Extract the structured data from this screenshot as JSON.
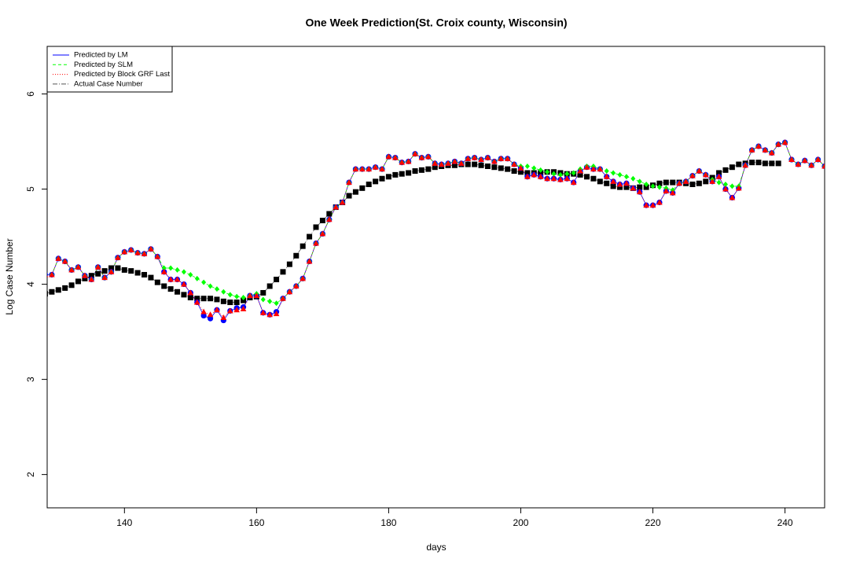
{
  "chart_data": {
    "type": "scatter",
    "title": "One Week Prediction(St. Croix county, Wisconsin)",
    "x_label": "days",
    "y_label": "Log Case Number",
    "xlim": [
      128.3,
      246
    ],
    "ylim": [
      1.65,
      6.5
    ],
    "xticks": [
      140,
      160,
      180,
      200,
      220,
      240
    ],
    "yticks": [
      2,
      3,
      4,
      5,
      6
    ],
    "legend": "topleft",
    "x": [
      128,
      129,
      130,
      131,
      132,
      133,
      134,
      135,
      136,
      137,
      138,
      139,
      140,
      141,
      142,
      143,
      144,
      145,
      146,
      147,
      148,
      149,
      150,
      151,
      152,
      153,
      154,
      155,
      156,
      157,
      158,
      159,
      160,
      161,
      162,
      163,
      164,
      165,
      166,
      167,
      168,
      169,
      170,
      171,
      172,
      173,
      174,
      175,
      176,
      177,
      178,
      179,
      180,
      181,
      182,
      183,
      184,
      185,
      186,
      187,
      188,
      189,
      190,
      191,
      192,
      193,
      194,
      195,
      196,
      197,
      198,
      199,
      200,
      201,
      202,
      203,
      204,
      205,
      206,
      207,
      208,
      209,
      210,
      211,
      212,
      213,
      214,
      215,
      216,
      217,
      218,
      219,
      220,
      221,
      222,
      223,
      224,
      225,
      226,
      227,
      228,
      229,
      230,
      231,
      232,
      233,
      234,
      235,
      236,
      237,
      238,
      239,
      240,
      241,
      242,
      243,
      244,
      245,
      246
    ],
    "series": [
      {
        "name": "Actual Case Number",
        "color": "#000000",
        "marker": "square",
        "linestyle": "dashdot",
        "values": [
          3.9,
          3.92,
          3.94,
          3.96,
          3.99,
          4.03,
          4.06,
          4.09,
          4.11,
          4.14,
          4.17,
          4.17,
          4.15,
          4.14,
          4.12,
          4.1,
          4.07,
          4.02,
          3.98,
          3.95,
          3.92,
          3.89,
          3.86,
          3.85,
          3.85,
          3.85,
          3.84,
          3.82,
          3.81,
          3.81,
          3.83,
          3.86,
          3.87,
          3.91,
          3.98,
          4.05,
          4.13,
          4.21,
          4.3,
          4.4,
          4.5,
          4.6,
          4.67,
          4.74,
          4.81,
          4.86,
          4.93,
          4.97,
          5.01,
          5.05,
          5.08,
          5.11,
          5.13,
          5.15,
          5.16,
          5.17,
          5.19,
          5.2,
          5.21,
          5.23,
          5.24,
          5.25,
          5.25,
          5.26,
          5.26,
          5.26,
          5.25,
          5.24,
          5.23,
          5.22,
          5.21,
          5.19,
          5.18,
          5.17,
          5.17,
          5.17,
          5.18,
          5.18,
          5.17,
          5.16,
          5.16,
          5.15,
          5.13,
          5.11,
          5.08,
          5.06,
          5.03,
          5.02,
          5.02,
          5.01,
          5.02,
          5.02,
          5.04,
          5.06,
          5.07,
          5.07,
          5.07,
          5.06,
          5.05,
          5.06,
          5.08,
          5.12,
          5.17,
          5.2,
          5.23,
          5.26,
          5.27,
          5.28,
          5.28,
          5.27,
          5.27,
          5.27,
          null,
          null,
          null,
          null,
          null,
          null,
          null
        ]
      },
      {
        "name": "Predicted by LM",
        "color": "#0000ff",
        "marker": "circle",
        "linestyle": "solid",
        "values": [
          4.1,
          4.1,
          4.27,
          4.24,
          4.15,
          4.18,
          4.09,
          4.05,
          4.18,
          4.07,
          4.13,
          4.28,
          4.34,
          4.36,
          4.33,
          4.32,
          4.37,
          4.29,
          4.13,
          4.05,
          4.05,
          4.0,
          3.91,
          3.81,
          3.67,
          3.64,
          3.73,
          3.62,
          3.72,
          3.75,
          3.76,
          3.88,
          3.88,
          3.7,
          3.68,
          3.71,
          3.85,
          3.92,
          3.98,
          4.06,
          4.24,
          4.43,
          4.53,
          4.68,
          4.81,
          4.86,
          5.07,
          5.21,
          5.21,
          5.21,
          5.23,
          5.21,
          5.34,
          5.33,
          5.28,
          5.29,
          5.37,
          5.33,
          5.34,
          5.27,
          5.26,
          5.27,
          5.29,
          5.27,
          5.32,
          5.33,
          5.31,
          5.33,
          5.29,
          5.32,
          5.32,
          5.26,
          5.22,
          5.13,
          5.15,
          5.13,
          5.11,
          5.11,
          5.1,
          5.11,
          5.07,
          5.19,
          5.23,
          5.21,
          5.21,
          5.13,
          5.08,
          5.05,
          5.06,
          5.01,
          4.97,
          4.83,
          4.83,
          4.86,
          4.98,
          4.96,
          5.06,
          5.08,
          5.14,
          5.19,
          5.15,
          5.08,
          5.13,
          5.0,
          4.91,
          5.01,
          5.25,
          5.41,
          5.45,
          5.41,
          5.38,
          5.47,
          5.49,
          5.31,
          5.26,
          5.3,
          5.25,
          5.31,
          5.24
        ]
      },
      {
        "name": "Predicted by SLM",
        "color": "#00ff00",
        "marker": "diamond",
        "linestyle": "dashed",
        "values": [
          4.1,
          4.1,
          4.27,
          4.24,
          4.15,
          4.18,
          4.09,
          4.05,
          4.18,
          4.07,
          4.13,
          4.28,
          4.34,
          4.36,
          4.33,
          4.32,
          4.37,
          4.29,
          4.17,
          4.17,
          4.15,
          4.13,
          4.1,
          4.06,
          4.02,
          3.98,
          3.95,
          3.92,
          3.89,
          3.87,
          3.86,
          3.88,
          3.9,
          3.84,
          3.82,
          3.8,
          3.85,
          3.92,
          3.98,
          4.06,
          4.24,
          4.43,
          4.53,
          4.68,
          4.81,
          4.86,
          5.07,
          5.21,
          5.21,
          5.21,
          5.23,
          5.21,
          5.34,
          5.33,
          5.28,
          5.29,
          5.37,
          5.33,
          5.34,
          5.27,
          5.26,
          5.27,
          5.29,
          5.27,
          5.32,
          5.33,
          5.31,
          5.33,
          5.29,
          5.32,
          5.32,
          5.26,
          5.24,
          5.24,
          5.22,
          5.2,
          5.18,
          5.16,
          5.15,
          5.16,
          5.17,
          5.21,
          5.24,
          5.24,
          5.21,
          5.19,
          5.17,
          5.15,
          5.13,
          5.11,
          5.08,
          5.05,
          5.03,
          5.02,
          5.01,
          4.99,
          5.06,
          5.08,
          5.14,
          5.19,
          5.15,
          5.1,
          5.07,
          5.05,
          5.03,
          5.03,
          5.25,
          5.41,
          5.45,
          5.41,
          5.38,
          5.47,
          5.49,
          5.31,
          5.26,
          5.3,
          5.25,
          5.31,
          5.24
        ]
      },
      {
        "name": "Predicted by Block GRF Last",
        "color": "#ff0000",
        "marker": "triangle",
        "linestyle": "dotted",
        "values": [
          4.1,
          4.1,
          4.27,
          4.24,
          4.15,
          4.18,
          4.09,
          4.05,
          4.18,
          4.07,
          4.13,
          4.28,
          4.34,
          4.36,
          4.33,
          4.32,
          4.37,
          4.29,
          4.13,
          4.05,
          4.05,
          4.0,
          3.91,
          3.81,
          3.71,
          3.68,
          3.73,
          3.65,
          3.72,
          3.73,
          3.74,
          3.88,
          3.88,
          3.7,
          3.68,
          3.69,
          3.85,
          3.92,
          3.98,
          4.06,
          4.24,
          4.43,
          4.53,
          4.68,
          4.81,
          4.86,
          5.07,
          5.21,
          5.21,
          5.21,
          5.23,
          5.21,
          5.34,
          5.33,
          5.28,
          5.29,
          5.37,
          5.33,
          5.34,
          5.27,
          5.26,
          5.27,
          5.29,
          5.27,
          5.32,
          5.33,
          5.31,
          5.33,
          5.29,
          5.32,
          5.32,
          5.26,
          5.22,
          5.13,
          5.15,
          5.13,
          5.11,
          5.11,
          5.1,
          5.11,
          5.07,
          5.19,
          5.23,
          5.21,
          5.21,
          5.13,
          5.08,
          5.05,
          5.06,
          5.01,
          4.97,
          4.83,
          4.83,
          4.86,
          4.98,
          4.96,
          5.06,
          5.08,
          5.14,
          5.19,
          5.15,
          5.08,
          5.13,
          5.0,
          4.91,
          5.01,
          5.25,
          5.41,
          5.45,
          5.41,
          5.38,
          5.47,
          5.49,
          5.31,
          5.26,
          5.3,
          5.25,
          5.31,
          5.24
        ]
      }
    ]
  }
}
